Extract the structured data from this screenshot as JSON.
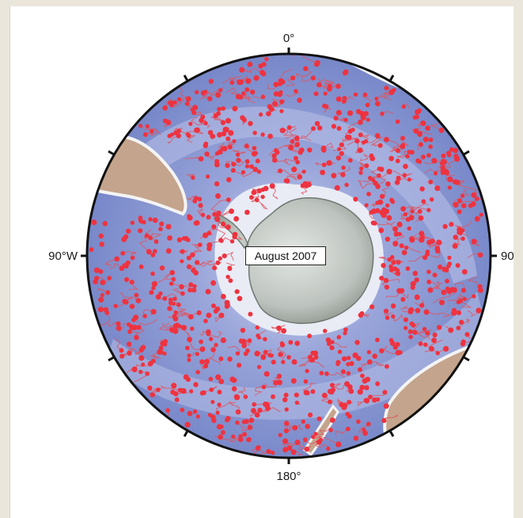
{
  "map": {
    "projection": "south-polar-stereographic",
    "date_label": "August 2007",
    "graticule_labels": {
      "top": "0°",
      "bottom": "180°",
      "left": "90°W",
      "right": "90°"
    },
    "colors": {
      "ocean_deep": "#7e8fcf",
      "ocean_shallow": "#c4cce9",
      "land": "#c0a08a",
      "antarctica": "#c3c8c3",
      "float_marker": "#ee3340",
      "float_track": "#e05560",
      "frame_background": "#ebe6dc"
    }
  }
}
